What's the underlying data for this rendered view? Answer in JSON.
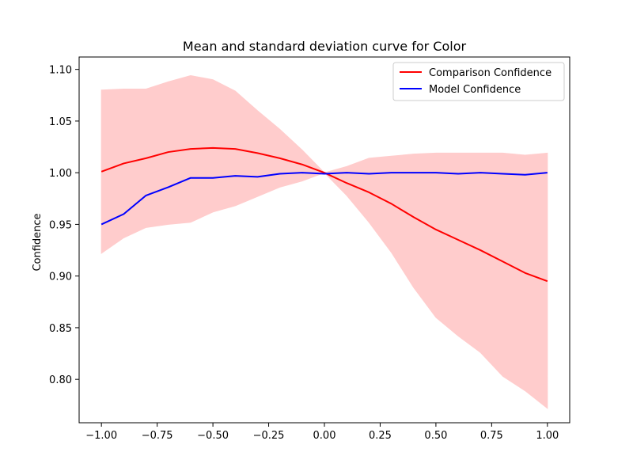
{
  "chart_data": {
    "type": "line",
    "title": "Mean and standard deviation curve for Color",
    "xlabel": "",
    "ylabel": "Confidence",
    "xlim": [
      -1.1,
      1.1
    ],
    "ylim": [
      0.758,
      1.112
    ],
    "x_ticks": [
      -1.0,
      -0.75,
      -0.5,
      -0.25,
      0.0,
      0.25,
      0.5,
      0.75,
      1.0
    ],
    "x_tick_labels": [
      "−1.00",
      "−0.75",
      "−0.50",
      "−0.25",
      "0.00",
      "0.25",
      "0.50",
      "0.75",
      "1.00"
    ],
    "y_ticks": [
      0.8,
      0.85,
      0.9,
      0.95,
      1.0,
      1.05,
      1.1
    ],
    "y_tick_labels": [
      "0.80",
      "0.85",
      "0.90",
      "0.95",
      "1.00",
      "1.05",
      "1.10"
    ],
    "grid": false,
    "legend_position": "top-right",
    "x": [
      -1.0,
      -0.9,
      -0.8,
      -0.7,
      -0.6,
      -0.5,
      -0.4,
      -0.3,
      -0.2,
      -0.1,
      0.0,
      0.1,
      0.2,
      0.3,
      0.4,
      0.5,
      0.6,
      0.7,
      0.8,
      0.9,
      1.0
    ],
    "series": [
      {
        "name": "Comparison Confidence",
        "color": "#ff0000",
        "values": [
          1.001,
          1.009,
          1.014,
          1.02,
          1.023,
          1.024,
          1.023,
          1.019,
          1.014,
          1.008,
          1.0,
          0.99,
          0.981,
          0.97,
          0.957,
          0.945,
          0.935,
          0.925,
          0.914,
          0.903,
          0.895
        ],
        "band_lower": [
          0.922,
          0.937,
          0.947,
          0.95,
          0.952,
          0.962,
          0.968,
          0.977,
          0.986,
          0.992,
          1.0,
          0.978,
          0.952,
          0.923,
          0.889,
          0.86,
          0.842,
          0.826,
          0.803,
          0.789,
          0.772
        ],
        "band_upper": [
          1.08,
          1.081,
          1.081,
          1.088,
          1.094,
          1.09,
          1.079,
          1.06,
          1.042,
          1.022,
          1.0,
          1.006,
          1.014,
          1.016,
          1.018,
          1.019,
          1.019,
          1.019,
          1.019,
          1.017,
          1.019
        ],
        "band_color": "#ffcccc"
      },
      {
        "name": "Model Confidence",
        "color": "#0000ff",
        "values": [
          0.95,
          0.96,
          0.978,
          0.986,
          0.995,
          0.995,
          0.997,
          0.996,
          0.999,
          1.0,
          0.999,
          1.0,
          0.999,
          1.0,
          1.0,
          1.0,
          0.999,
          1.0,
          0.999,
          0.998,
          1.0
        ]
      }
    ]
  }
}
